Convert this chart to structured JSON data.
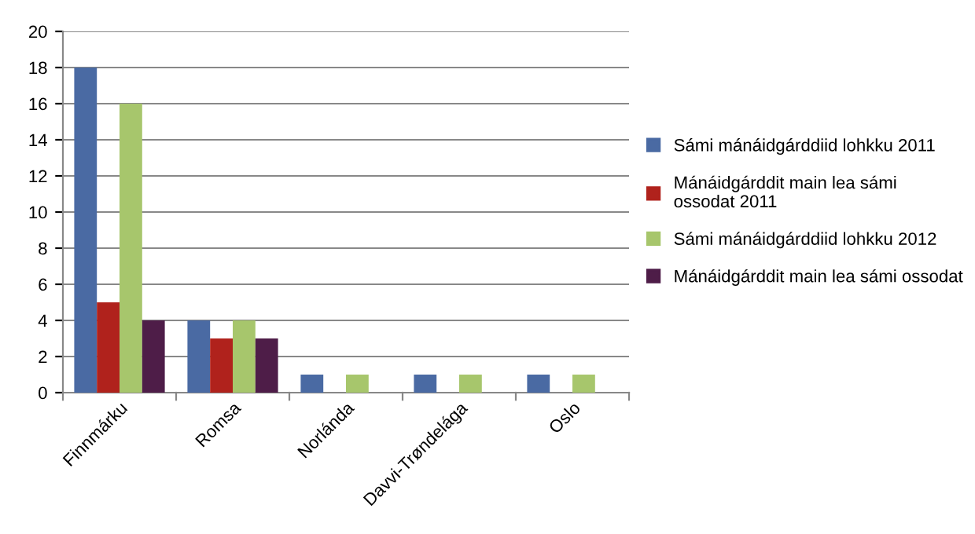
{
  "chart_data": {
    "type": "bar",
    "categories": [
      "Finnmárku",
      "Romsa",
      "Norlánda",
      "Davvi-Trøndelága",
      "Oslo"
    ],
    "series": [
      {
        "name": "Sámi mánáidgárddiid lohkku 2011",
        "color": "#4a6aa3",
        "values": [
          18,
          4,
          1,
          1,
          1
        ]
      },
      {
        "name": "Mánáidgárddit main lea sámi ossodat 2011",
        "color": "#b0221c",
        "values": [
          5,
          3,
          null,
          null,
          null
        ]
      },
      {
        "name": "Sámi mánáidgárddiid lohkku 2012",
        "color": "#a7c66c",
        "values": [
          16,
          4,
          1,
          1,
          1
        ]
      },
      {
        "name": "Mánáidgárddit main lea sámi ossodat",
        "color": "#4e1d48",
        "values": [
          4,
          3,
          null,
          null,
          null
        ]
      }
    ],
    "ylim": [
      0,
      20
    ],
    "yticks": [
      0,
      2,
      4,
      6,
      8,
      10,
      12,
      14,
      16,
      18,
      20
    ],
    "grid": "y",
    "legend": "right"
  }
}
